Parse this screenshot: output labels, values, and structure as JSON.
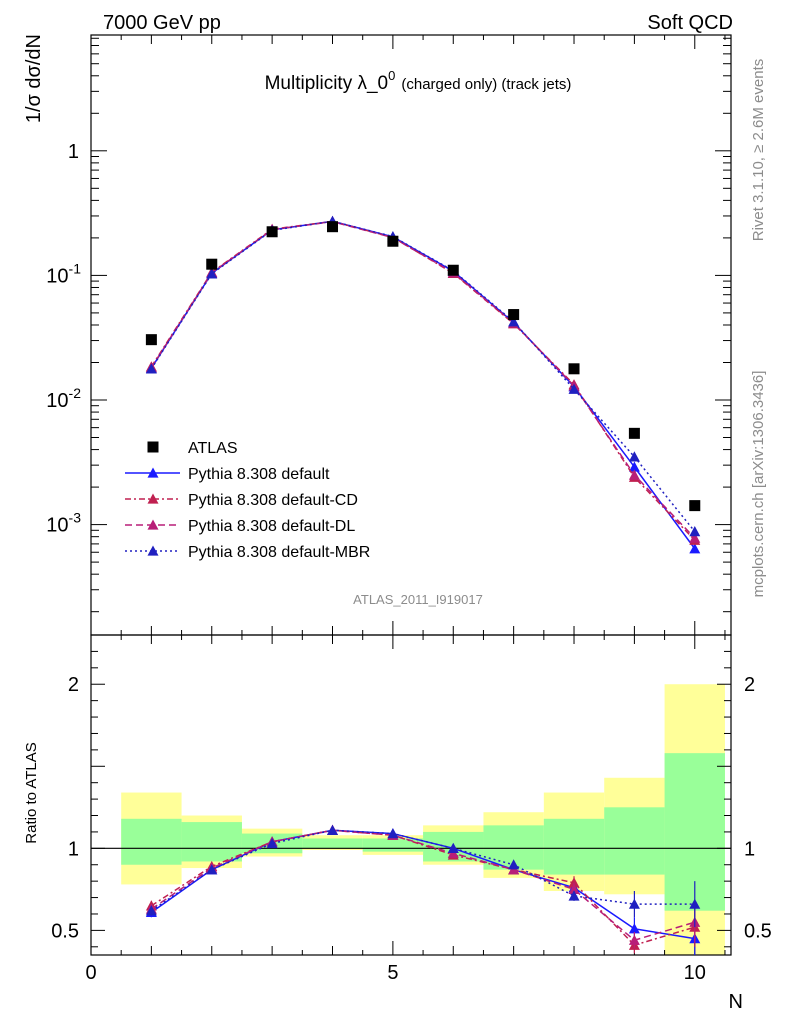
{
  "header": {
    "energy": "7000 GeV pp",
    "category": "Soft QCD"
  },
  "side_labels": {
    "rivet": "Rivet 3.1.10, ≥ 2.6M events",
    "site": "mcplots.cern.ch [arXiv:1306.3436]"
  },
  "chart_data": {
    "type": "scatter",
    "title": "Multiplicity λ_0",
    "title_superscript": "0",
    "title_suffix": "(charged only) (track jets)",
    "analysis_id": "ATLAS_2011_I919017",
    "xlabel": "N",
    "ylabel_main": "1/σ dσ/dN",
    "ylabel_ratio": "Ratio to ATLAS",
    "xlim": [
      0,
      10.6
    ],
    "ylim_main": [
      0.00013,
      8.5
    ],
    "ylim_ratio": [
      0.35,
      2.3
    ],
    "y_scale_main": "log",
    "x_ticks": [
      "0",
      "5",
      "10"
    ],
    "y_ticks_main": [
      "1",
      "10^-1",
      "10^-2",
      "10^-3"
    ],
    "y_ticks_ratio": [
      "0.5",
      "1",
      "2"
    ],
    "legend_position": "lower-left",
    "x": [
      1,
      2,
      3,
      4,
      5,
      6,
      7,
      8,
      9,
      10
    ],
    "data": {
      "name": "ATLAS",
      "color": "#000000",
      "values": [
        0.0305,
        0.123,
        0.224,
        0.246,
        0.188,
        0.11,
        0.0485,
        0.0178,
        0.0054,
        0.00142
      ]
    },
    "uncertainty_bands": {
      "inner_color": "#99ff99",
      "outer_color": "#ffff99",
      "inner": [
        [
          0.9,
          1.18
        ],
        [
          0.92,
          1.16
        ],
        [
          0.97,
          1.09
        ],
        [
          1.0,
          1.06
        ],
        [
          0.98,
          1.06
        ],
        [
          0.92,
          1.1
        ],
        [
          0.87,
          1.14
        ],
        [
          0.84,
          1.18
        ],
        [
          0.84,
          1.25
        ],
        [
          0.62,
          1.58
        ]
      ],
      "outer": [
        [
          0.78,
          1.34
        ],
        [
          0.88,
          1.2
        ],
        [
          0.95,
          1.12
        ],
        [
          0.99,
          1.08
        ],
        [
          0.96,
          1.08
        ],
        [
          0.9,
          1.14
        ],
        [
          0.82,
          1.22
        ],
        [
          0.74,
          1.34
        ],
        [
          0.72,
          1.43
        ],
        [
          0.35,
          2.0
        ]
      ]
    },
    "series": [
      {
        "name": "Pythia 8.308 default",
        "color": "#1a1aff",
        "line": "solid",
        "values": [
          0.018,
          0.104,
          0.232,
          0.272,
          0.204,
          0.108,
          0.0418,
          0.0128,
          0.0029,
          0.00064
        ],
        "ratio": [
          0.61,
          0.87,
          1.04,
          1.11,
          1.09,
          1.0,
          0.87,
          0.76,
          0.51,
          0.45
        ],
        "ratio_err": [
          0.03,
          0.01,
          0.01,
          0.01,
          0.01,
          0.01,
          0.02,
          0.03,
          0.07,
          0.11
        ]
      },
      {
        "name": "Pythia 8.308 default-CD",
        "color": "#c02050",
        "line": "dashed-dotted",
        "values": [
          0.0185,
          0.106,
          0.235,
          0.271,
          0.202,
          0.104,
          0.041,
          0.0133,
          0.0024,
          0.00075
        ],
        "ratio": [
          0.65,
          0.89,
          1.04,
          1.11,
          1.08,
          0.96,
          0.87,
          0.79,
          0.41,
          0.52
        ],
        "ratio_err": [
          0.03,
          0.01,
          0.01,
          0.01,
          0.01,
          0.01,
          0.02,
          0.04,
          0.05,
          0.12
        ]
      },
      {
        "name": "Pythia 8.308 default-DL",
        "color": "#b81e78",
        "line": "dashed",
        "values": [
          0.0182,
          0.105,
          0.233,
          0.27,
          0.201,
          0.105,
          0.0415,
          0.013,
          0.0025,
          0.00078
        ],
        "ratio": [
          0.63,
          0.88,
          1.04,
          1.11,
          1.08,
          0.97,
          0.87,
          0.75,
          0.44,
          0.55
        ],
        "ratio_err": [
          0.03,
          0.01,
          0.01,
          0.01,
          0.01,
          0.01,
          0.02,
          0.04,
          0.05,
          0.12
        ]
      },
      {
        "name": "Pythia 8.308 default-MBR",
        "color": "#2020c0",
        "line": "dotted",
        "values": [
          0.0178,
          0.103,
          0.23,
          0.272,
          0.205,
          0.109,
          0.0425,
          0.0122,
          0.0035,
          0.00088
        ],
        "ratio": [
          0.62,
          0.87,
          1.03,
          1.11,
          1.09,
          1.0,
          0.9,
          0.71,
          0.66,
          0.66
        ],
        "ratio_err": [
          0.03,
          0.01,
          0.01,
          0.01,
          0.01,
          0.01,
          0.02,
          0.03,
          0.08,
          0.14
        ]
      }
    ]
  }
}
